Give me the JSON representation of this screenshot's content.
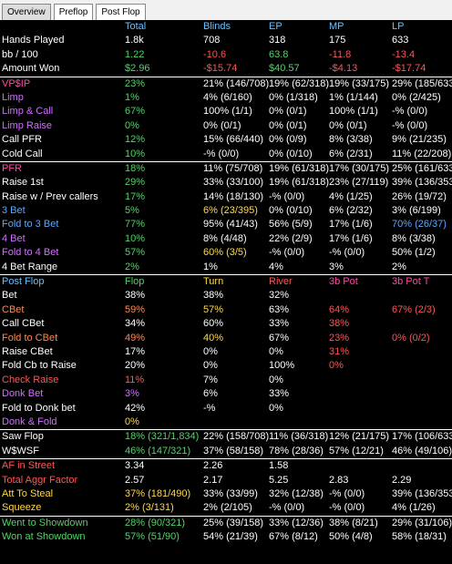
{
  "tabs": [
    {
      "label": "Overview",
      "active": true
    },
    {
      "label": "Preflop",
      "active": false
    },
    {
      "label": "Post Flop",
      "active": false
    }
  ],
  "colors": {
    "background": "#000000",
    "header": "#66c2ff",
    "green": "#52d468",
    "red": "#ff5555",
    "pink": "#ff4aa5",
    "purple": "#d070ff",
    "yellow": "#ffd84a",
    "orange": "#ff8a50"
  },
  "rows": [
    {
      "cells": [
        "",
        "Total",
        "Blinds",
        "EP",
        "MP",
        "LP"
      ],
      "colors": [
        "white",
        "hdr",
        "hdr",
        "hdr",
        "hdr",
        "hdr"
      ],
      "sep": false
    },
    {
      "cells": [
        "Hands Played",
        "1.8k",
        "708",
        "318",
        "175",
        "633"
      ],
      "colors": [
        "white",
        "white",
        "white",
        "white",
        "white",
        "white"
      ],
      "sep": false
    },
    {
      "cells": [
        "bb / 100",
        "1.22",
        "-10.6",
        "63.8",
        "-11.8",
        "-13.4"
      ],
      "colors": [
        "white",
        "green",
        "red",
        "green",
        "red",
        "red"
      ],
      "sep": false
    },
    {
      "cells": [
        "Amount Won",
        "$2.96",
        "-$15.74",
        "$40.57",
        "-$4.13",
        "-$17.74"
      ],
      "colors": [
        "white",
        "green",
        "red",
        "green",
        "red",
        "red"
      ],
      "sep": false
    },
    {
      "cells": [
        "VP$IP",
        "23%",
        "21% (146/708)",
        "19% (62/318)",
        "19% (33/175)",
        "29% (185/633)"
      ],
      "colors": [
        "pink",
        "green",
        "white",
        "white",
        "white",
        "white"
      ],
      "sep": true
    },
    {
      "cells": [
        "Limp",
        "1%",
        "4% (6/160)",
        "0% (1/318)",
        "1% (1/144)",
        "0% (2/425)"
      ],
      "colors": [
        "purple",
        "green",
        "white",
        "white",
        "white",
        "white"
      ],
      "sep": false
    },
    {
      "cells": [
        "Limp & Call",
        "67%",
        "100% (1/1)",
        "0% (0/1)",
        "100% (1/1)",
        "-% (0/0)"
      ],
      "colors": [
        "purple",
        "green",
        "white",
        "white",
        "white",
        "white"
      ],
      "sep": false
    },
    {
      "cells": [
        "Limp Raise",
        "0%",
        "0% (0/1)",
        "0% (0/1)",
        "0% (0/1)",
        "-% (0/0)"
      ],
      "colors": [
        "purple",
        "green",
        "white",
        "white",
        "white",
        "white"
      ],
      "sep": false
    },
    {
      "cells": [
        "Call PFR",
        "12%",
        "15% (66/440)",
        "0% (0/9)",
        "8% (3/38)",
        "9% (21/235)"
      ],
      "colors": [
        "white",
        "green",
        "white",
        "white",
        "white",
        "white"
      ],
      "sep": false
    },
    {
      "cells": [
        "Cold Call",
        "10%",
        "-% (0/0)",
        "0% (0/10)",
        "6% (2/31)",
        "11% (22/208)"
      ],
      "colors": [
        "white",
        "green",
        "white",
        "white",
        "white",
        "white"
      ],
      "sep": false
    },
    {
      "cells": [
        "PFR",
        "18%",
        "11% (75/708)",
        "19% (61/318)",
        "17% (30/175)",
        "25% (161/633)"
      ],
      "colors": [
        "pink",
        "green",
        "white",
        "white",
        "white",
        "white"
      ],
      "sep": true
    },
    {
      "cells": [
        "Raise 1st",
        "29%",
        "33% (33/100)",
        "19% (61/318)",
        "23% (27/119)",
        "39% (136/353)"
      ],
      "colors": [
        "white",
        "green",
        "white",
        "white",
        "white",
        "white"
      ],
      "sep": false
    },
    {
      "cells": [
        "Raise w / Prev callers",
        "17%",
        "14% (18/130)",
        "-% (0/0)",
        "4% (1/25)",
        "26% (19/72)"
      ],
      "colors": [
        "white",
        "green",
        "white",
        "white",
        "white",
        "white"
      ],
      "sep": false
    },
    {
      "cells": [
        "3 Bet",
        "5%",
        "6% (23/395)",
        "0% (0/10)",
        "6% (2/32)",
        "3% (6/199)"
      ],
      "colors": [
        "blue",
        "green",
        "yellow",
        "white",
        "white",
        "white"
      ],
      "sep": false
    },
    {
      "cells": [
        "Fold to 3 Bet",
        "77%",
        "95% (41/43)",
        "56% (5/9)",
        "17% (1/6)",
        "70% (26/37)"
      ],
      "colors": [
        "blue",
        "green",
        "white",
        "white",
        "white",
        "blue"
      ],
      "sep": false
    },
    {
      "cells": [
        "4 Bet",
        "10%",
        "8% (4/48)",
        "22% (2/9)",
        "17% (1/6)",
        "8% (3/38)"
      ],
      "colors": [
        "purple",
        "green",
        "white",
        "white",
        "white",
        "white"
      ],
      "sep": false
    },
    {
      "cells": [
        "Fold to 4 Bet",
        "57%",
        "60% (3/5)",
        "-% (0/0)",
        "-% (0/0)",
        "50% (1/2)"
      ],
      "colors": [
        "purple",
        "green",
        "yellow",
        "white",
        "white",
        "white"
      ],
      "sep": false
    },
    {
      "cells": [
        "4 Bet Range",
        "2%",
        "1%",
        "4%",
        "3%",
        "2%"
      ],
      "colors": [
        "white",
        "green",
        "white",
        "white",
        "white",
        "white"
      ],
      "sep": false
    },
    {
      "cells": [
        "Post Flop",
        "Flop",
        "Turn",
        "River",
        "3b Pot",
        "3b Pot T"
      ],
      "colors": [
        "hdr",
        "green",
        "yellow",
        "red",
        "pink",
        "pink"
      ],
      "sep": true
    },
    {
      "cells": [
        "Bet",
        "38%",
        "38%",
        "32%",
        "",
        ""
      ],
      "colors": [
        "white",
        "white",
        "white",
        "white",
        "white",
        "white"
      ],
      "sep": false
    },
    {
      "cells": [
        "CBet",
        "59%",
        "57%",
        "63%",
        "64%",
        "67% (2/3)"
      ],
      "colors": [
        "orange",
        "orange",
        "yellow",
        "white",
        "red",
        "red"
      ],
      "sep": false
    },
    {
      "cells": [
        "Call CBet",
        "34%",
        "60%",
        "33%",
        "38%",
        ""
      ],
      "colors": [
        "white",
        "white",
        "white",
        "white",
        "red",
        "white"
      ],
      "sep": false
    },
    {
      "cells": [
        "Fold to CBet",
        "49%",
        "40%",
        "67%",
        "23%",
        "0% (0/2)"
      ],
      "colors": [
        "orange",
        "orange",
        "yellow",
        "white",
        "red",
        "red"
      ],
      "sep": false
    },
    {
      "cells": [
        "Raise CBet",
        "17%",
        "0%",
        "0%",
        "31%",
        ""
      ],
      "colors": [
        "white",
        "white",
        "white",
        "white",
        "red",
        "white"
      ],
      "sep": false
    },
    {
      "cells": [
        "Fold Cb to Raise",
        "20%",
        "0%",
        "100%",
        "0%",
        ""
      ],
      "colors": [
        "white",
        "white",
        "white",
        "white",
        "red",
        "white"
      ],
      "sep": false
    },
    {
      "cells": [
        "Check Raise",
        "11%",
        "7%",
        "0%",
        "",
        ""
      ],
      "colors": [
        "red",
        "red",
        "white",
        "white",
        "white",
        "white"
      ],
      "sep": false
    },
    {
      "cells": [
        "Donk Bet",
        "3%",
        "6%",
        "33%",
        "",
        ""
      ],
      "colors": [
        "purple",
        "purple",
        "white",
        "white",
        "white",
        "white"
      ],
      "sep": false
    },
    {
      "cells": [
        "Fold to Donk bet",
        "42%",
        "-%",
        "0%",
        "",
        ""
      ],
      "colors": [
        "white",
        "white",
        "white",
        "white",
        "white",
        "white"
      ],
      "sep": false
    },
    {
      "cells": [
        "Donk & Fold",
        "0%",
        "",
        "",
        "",
        ""
      ],
      "colors": [
        "purple",
        "yellow",
        "white",
        "white",
        "white",
        "white"
      ],
      "sep": false
    },
    {
      "cells": [
        "Saw Flop",
        "18% (321/1,834)",
        "22% (158/708)",
        "11% (36/318)",
        "12% (21/175)",
        "17% (106/633)"
      ],
      "colors": [
        "white",
        "green",
        "white",
        "white",
        "white",
        "white"
      ],
      "sep": true
    },
    {
      "cells": [
        "W$WSF",
        "46% (147/321)",
        "37% (58/158)",
        "78% (28/36)",
        "57% (12/21)",
        "46% (49/106)"
      ],
      "colors": [
        "white",
        "green",
        "white",
        "white",
        "white",
        "white"
      ],
      "sep": false
    },
    {
      "cells": [
        "AF in Street",
        "3.34",
        "2.26",
        "1.58",
        "",
        ""
      ],
      "colors": [
        "red",
        "white",
        "white",
        "white",
        "white",
        "white"
      ],
      "sep": true
    },
    {
      "cells": [
        "Total Aggr Factor",
        "2.57",
        "2.17",
        "5.25",
        "2.83",
        "2.29"
      ],
      "colors": [
        "red",
        "white",
        "white",
        "white",
        "white",
        "white"
      ],
      "sep": false
    },
    {
      "cells": [
        "Att To Steal",
        "37% (181/490)",
        "33% (33/99)",
        "32% (12/38)",
        "-% (0/0)",
        "39% (136/353)"
      ],
      "colors": [
        "yellow",
        "yellow",
        "white",
        "white",
        "white",
        "white"
      ],
      "sep": false
    },
    {
      "cells": [
        "Squeeze",
        "2% (3/131)",
        "2% (2/105)",
        "-% (0/0)",
        "-% (0/0)",
        "4% (1/26)"
      ],
      "colors": [
        "yellow",
        "yellow",
        "white",
        "white",
        "white",
        "white"
      ],
      "sep": false
    },
    {
      "cells": [
        "Went to Showdown",
        "28% (90/321)",
        "25% (39/158)",
        "33% (12/36)",
        "38% (8/21)",
        "29% (31/106)"
      ],
      "colors": [
        "green",
        "green",
        "white",
        "white",
        "white",
        "white"
      ],
      "sep": true
    },
    {
      "cells": [
        "Won at Showdown",
        "57% (51/90)",
        "54% (21/39)",
        "67% (8/12)",
        "50% (4/8)",
        "58% (18/31)"
      ],
      "colors": [
        "green",
        "green",
        "white",
        "white",
        "white",
        "white"
      ],
      "sep": false
    }
  ]
}
